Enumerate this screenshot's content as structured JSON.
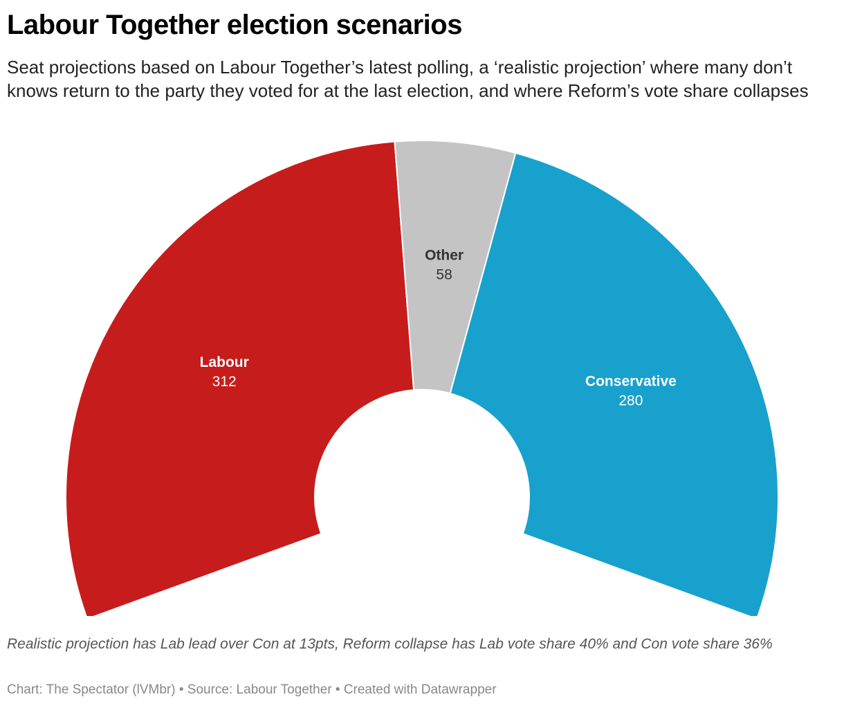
{
  "title": "Labour Together election scenarios",
  "subtitle": "Seat projections based on Labour Together’s latest polling, a ‘realistic projection’ where many don’t knows return to the party they voted for at the last election, and where Reform’s vote share collapses",
  "note": "Realistic projection has Lab lead over Con at 13pts, Reform collapse has Lab vote share 40% and Con vote share 36%",
  "footer": {
    "chart_credit": "Chart: The Spectator (lVMbr)",
    "separator": "•",
    "source": "Source: Labour Together",
    "created_with": "Created with Datawrapper"
  },
  "chart_data": {
    "type": "pie",
    "variant": "half-donut",
    "title": "Labour Together election scenarios",
    "slices": [
      {
        "label": "Labour",
        "value": 312,
        "color": "#c71c1c",
        "label_color": "#ffffff"
      },
      {
        "label": "Other",
        "value": 58,
        "color": "#c4c4c4",
        "label_color": "#333333"
      },
      {
        "label": "Conservative",
        "value": 280,
        "color": "#18a1cd",
        "label_color": "#ffffff"
      }
    ]
  }
}
